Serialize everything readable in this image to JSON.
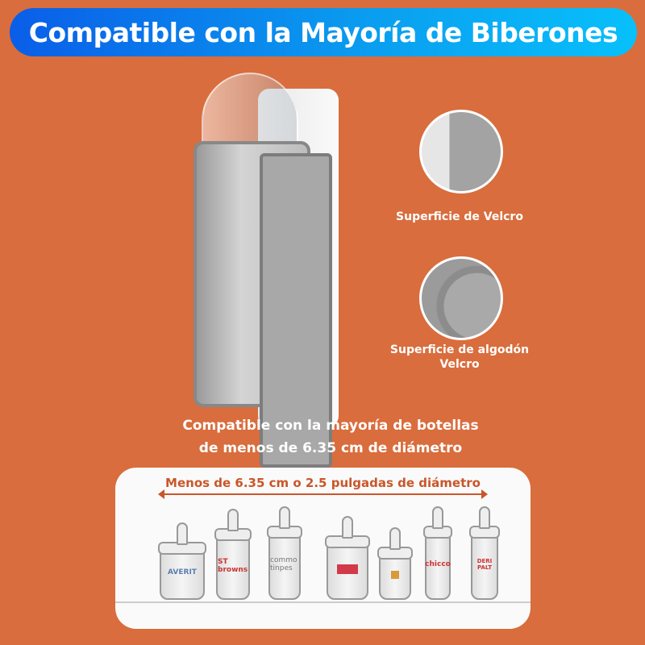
{
  "banner": {
    "title": "Compatible con la Mayoría de Biberones",
    "gradient": [
      "#0a5ee8",
      "#08c0fb"
    ]
  },
  "background_color": "#d96d3d",
  "features": [
    {
      "label": "Superficie de Velcro"
    },
    {
      "label": "Superficie de algodón Velcro"
    }
  ],
  "caption": {
    "line1": "Compatible con la mayoría de botellas",
    "line2": "de menos de 6.35 cm de diámetro"
  },
  "panel": {
    "dimension_label": "Menos de 6.35 cm o 2.5 pulgadas de diámetro",
    "bottles": [
      {
        "brand": "AVERIT"
      },
      {
        "brand": "ST browns"
      },
      {
        "brand": "commo tinpes"
      },
      {
        "brand": ""
      },
      {
        "brand": ""
      },
      {
        "brand": "chicco"
      },
      {
        "brand": "DERI PALT"
      }
    ]
  }
}
